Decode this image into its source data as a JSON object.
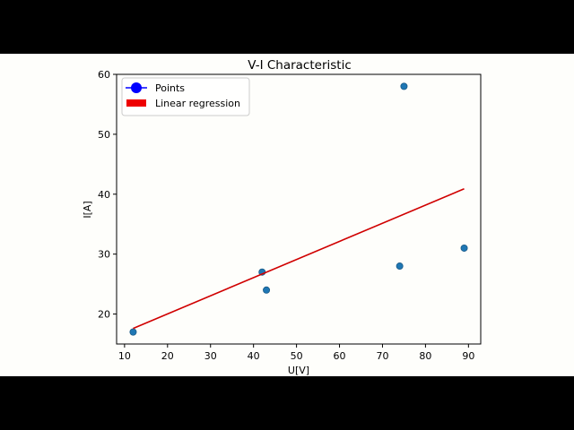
{
  "colors": {
    "points": "#1f77b4",
    "regression": "#d00000",
    "legend_marker": "#0000ff",
    "legend_patch": "#ee0000",
    "background": "#fefefb"
  },
  "chart_data": {
    "type": "scatter",
    "title": "V-I Characteristic",
    "xlabel": "U[V]",
    "ylabel": "I[A]",
    "xlim": [
      8.15,
      92.85
    ],
    "ylim": [
      15,
      60
    ],
    "xticks": [
      10,
      20,
      30,
      40,
      50,
      60,
      70,
      80,
      90
    ],
    "yticks": [
      20,
      30,
      40,
      50,
      60
    ],
    "grid": false,
    "legend_position": "top-left",
    "series": [
      {
        "name": "Points",
        "kind": "scatter",
        "points": [
          [
            12,
            17
          ],
          [
            42,
            27
          ],
          [
            43,
            24
          ],
          [
            74,
            28
          ],
          [
            75,
            58
          ],
          [
            89,
            31
          ]
        ]
      },
      {
        "name": "Linear regression",
        "kind": "line",
        "points": [
          [
            12,
            17.6
          ],
          [
            89,
            40.9
          ]
        ]
      }
    ]
  }
}
